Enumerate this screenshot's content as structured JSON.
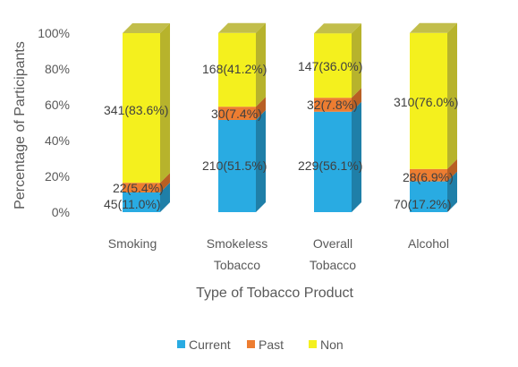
{
  "chart_data": {
    "type": "bar",
    "stacked": true,
    "percent_stacked": true,
    "style": "3d-column",
    "title": "",
    "xlabel": "Type of Tobacco Product",
    "ylabel": "Percentage of Participants",
    "ylim": [
      0,
      100
    ],
    "yticks": [
      "0%",
      "20%",
      "40%",
      "60%",
      "80%",
      "100%"
    ],
    "categories": [
      [
        "Smoking"
      ],
      [
        "Smokeless",
        "Tobacco"
      ],
      [
        "Overall",
        "Tobacco"
      ],
      [
        "Alcohol"
      ]
    ],
    "series": [
      {
        "name": "Current",
        "color": "#29ABE2",
        "side_color": "#1F7FA8",
        "values": [
          11.0,
          51.5,
          56.1,
          17.2
        ],
        "labels": [
          "45(11.0%)",
          "210(51.5%)",
          "229(56.1%)",
          "70(17.2%)"
        ]
      },
      {
        "name": "Past",
        "color": "#ED7D31",
        "side_color": "#B85F24",
        "values": [
          5.4,
          7.4,
          7.8,
          6.9
        ],
        "labels": [
          "22(5.4%)",
          "30(7.4%)",
          "32(7.8%)",
          "28(6.9%)"
        ]
      },
      {
        "name": "Non",
        "color": "#F4F01E",
        "side_color": "#B7B32C",
        "values": [
          83.6,
          41.2,
          36.0,
          76.0
        ],
        "labels": [
          "341(83.6%)",
          "168(41.2%)",
          "147(36.0%)",
          "310(76.0%)"
        ]
      }
    ],
    "legend": {
      "position": "bottom",
      "entries": [
        "Current",
        "Past",
        "Non"
      ]
    },
    "grid": false
  }
}
